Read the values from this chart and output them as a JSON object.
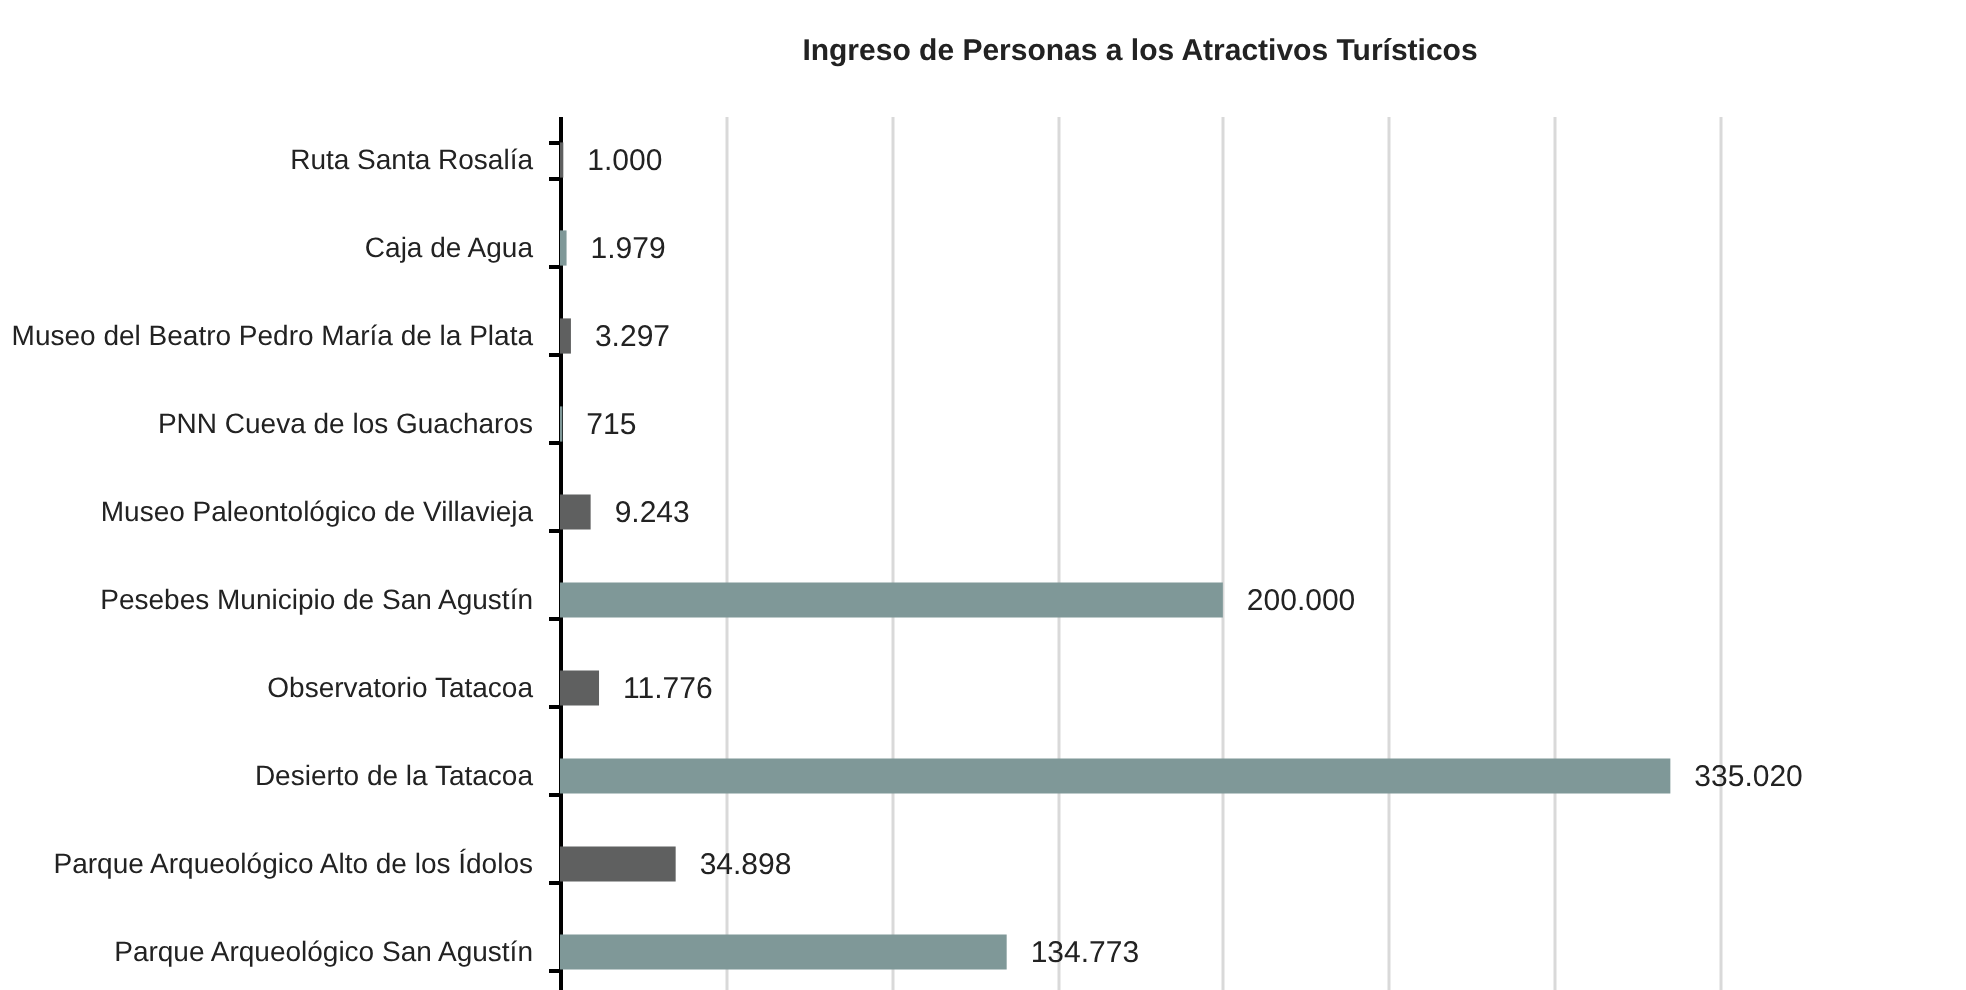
{
  "chart_data": {
    "type": "bar",
    "orientation": "horizontal",
    "title": "Ingreso de Personas a los Atractivos Turísticos",
    "categories": [
      "Ruta Santa Rosalía",
      "Caja de Agua",
      "Museo del Beatro Pedro María de la Plata",
      "PNN Cueva de los Guacharos",
      "Museo Paleontológico de Villavieja",
      "Pesebes Municipio de San Agustín",
      "Observatorio Tatacoa",
      "Desierto de la Tatacoa",
      "Parque Arqueológico Alto de los Ídolos",
      "Parque Arqueológico San Agustín"
    ],
    "values": [
      1000,
      1979,
      3297,
      715,
      9243,
      200000,
      11776,
      335020,
      34898,
      134773
    ],
    "value_labels": [
      "1.000",
      "1.979",
      "3.297",
      "715",
      "9.243",
      "200.000",
      "11.776",
      "335.020",
      "34.898",
      "134.773"
    ],
    "colors": [
      "#5f6060",
      "#7f9898",
      "#5f6060",
      "#7f9898",
      "#5f6060",
      "#7f9898",
      "#5f6060",
      "#7f9898",
      "#5f6060",
      "#7f9898"
    ],
    "xlim": [
      0,
      350000
    ],
    "xticks": [
      {
        "value": 0,
        "label": null
      },
      {
        "value": 50000,
        "label": null
      },
      {
        "value": 100000,
        "label": null
      },
      {
        "value": 150000,
        "label": null
      },
      {
        "value": 200000,
        "label": null
      },
      {
        "value": 250000,
        "label": null
      },
      {
        "value": 300000,
        "label": null
      },
      {
        "value": 350000,
        "label": null
      }
    ],
    "tick_labels": "y",
    "grid": "x"
  }
}
